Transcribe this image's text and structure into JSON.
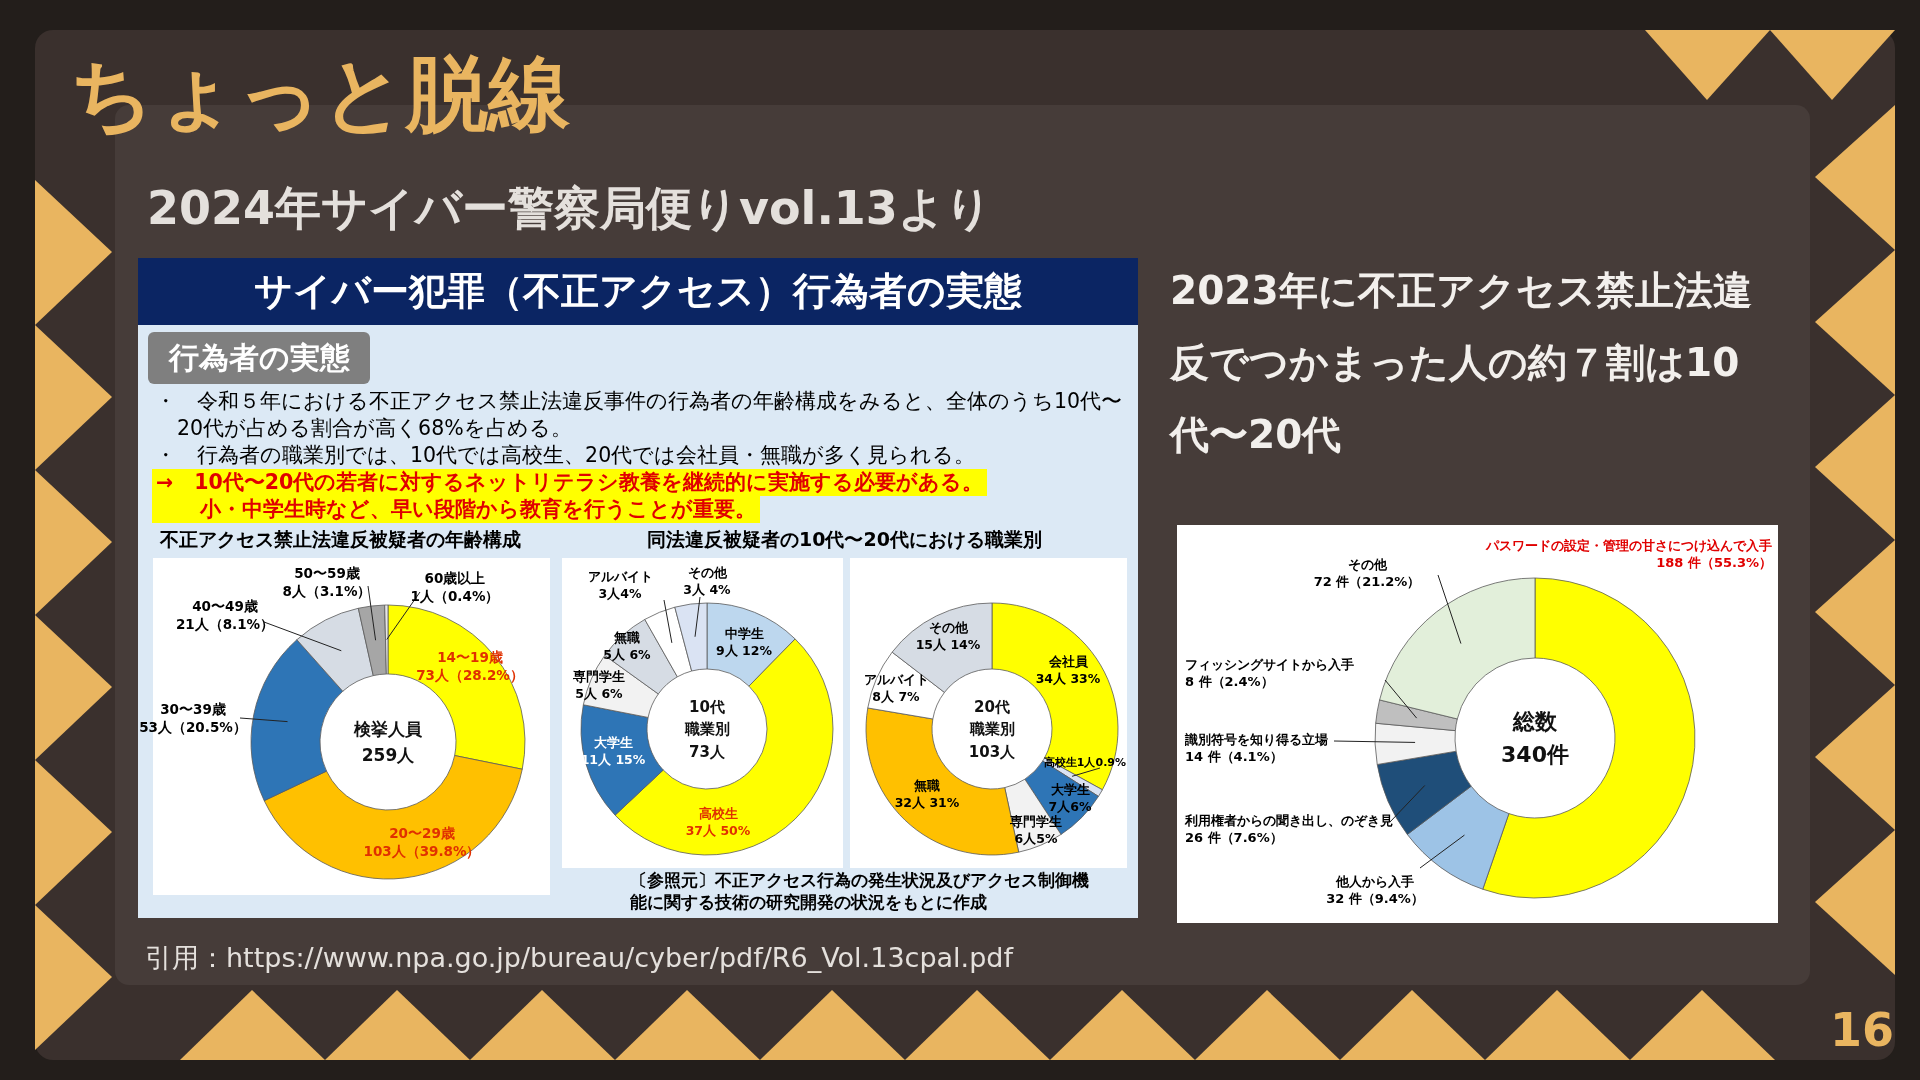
{
  "chart_data": [
    {
      "type": "other",
      "title": "ちょっと脱線",
      "subtitle": "2024年サイバー警察局便りvol.13より",
      "annotations": [
        "サイバー犯罪（不正アクセス）行為者の実態",
        "行為者の実態",
        "・　令和５年における不正アクセス禁止法違反事件の行為者の年齢構成をみると、全体のうち10代〜20代が占める割合が高く68%を占める。",
        "・　行為者の職業別では、10代では高校生、20代では会社員・無職が多く見られる。",
        "→　10代〜20代の若者に対するネットリテラシ教養を継続的に実施する必要がある。",
        "小・中学生時など、早い段階から教育を行うことが重要。",
        "〔参照元〕不正アクセス行為の発生状況及びアクセス制御機能に関する技術の研究開発の状況をもとに作成",
        "2023年に不正アクセス禁止法違反でつかまった人の約７割は10代〜20代",
        "引用：https://www.npa.go.jp/bureau/cyber/pdf/R6_Vol.13cpal.pdf",
        "16"
      ]
    },
    {
      "type": "donut",
      "title": "不正アクセス禁止法違反被疑者の年齢構成",
      "categories": [
        "14〜19歳",
        "20〜29歳",
        "30〜39歳",
        "40〜49歳",
        "50〜59歳",
        "60歳以上"
      ],
      "values": [
        73,
        103,
        53,
        21,
        8,
        1
      ],
      "value_labels": [
        "73人（28.2%）",
        "103人（39.8%）",
        "53人（20.5%）",
        "21人（8.1%）",
        "8人（3.1%）",
        "1人（0.4%）"
      ],
      "colors": [
        "#ffff00",
        "#ffc000",
        "#2e75b6",
        "#d6dce4",
        "#a6a6a6",
        "#e7e6e6"
      ],
      "annotations": [
        "検挙人員",
        "259人"
      ]
    },
    {
      "type": "donut",
      "title": "同法違反被疑者の10代〜20代における職業別",
      "categories": [
        "中学生",
        "高校生",
        "大学生",
        "専門学生",
        "無職",
        "アルバイト",
        "その他"
      ],
      "values": [
        9,
        37,
        11,
        5,
        5,
        3,
        3
      ],
      "value_labels": [
        "9人 12%",
        "37人 50%",
        "11人 15%",
        "5人 6%",
        "5人 6%",
        "3人4%",
        "3人 4%"
      ],
      "colors": [
        "#bdd7ee",
        "#ffff00",
        "#2e75b6",
        "#f2f2f2",
        "#d6dce4",
        "#ffffff",
        "#dae3f3"
      ],
      "annotations": [
        "10代",
        "職業別",
        "73人"
      ]
    },
    {
      "type": "donut",
      "categories": [
        "会社員",
        "高校生",
        "大学生",
        "専門学生",
        "無職",
        "アルバイト",
        "その他"
      ],
      "values": [
        34,
        1,
        7,
        6,
        32,
        8,
        15
      ],
      "value_labels": [
        "34人 33%",
        "1人0.9%",
        "7人6%",
        "6人5%",
        "32人 31%",
        "8人 7%",
        "15人 14%"
      ],
      "colors": [
        "#ffff00",
        "#dae3f3",
        "#2e75b6",
        "#f2f2f2",
        "#ffc000",
        "#ffffff",
        "#d6dce4"
      ],
      "annotations": [
        "20代",
        "職業別",
        "103人"
      ]
    },
    {
      "type": "donut",
      "categories": [
        "パスワードの設定・管理の甘さにつけ込んで入手",
        "他人から入手",
        "利用権者からの聞き出し、のぞき見",
        "識別符号を知り得る立場",
        "フィッシングサイトから入手",
        "その他"
      ],
      "values": [
        188,
        32,
        26,
        14,
        8,
        72
      ],
      "value_labels": [
        "188 件（55.3%）",
        "32 件（9.4%）",
        "26 件（7.6%）",
        "14 件（4.1%）",
        "8 件（2.4%）",
        "72 件（21.2%）"
      ],
      "colors": [
        "#ffff00",
        "#9dc3e6",
        "#1f4e79",
        "#f2f2f2",
        "#bfbfbf",
        "#e2efda"
      ],
      "annotations": [
        "総数",
        "340件"
      ]
    }
  ]
}
